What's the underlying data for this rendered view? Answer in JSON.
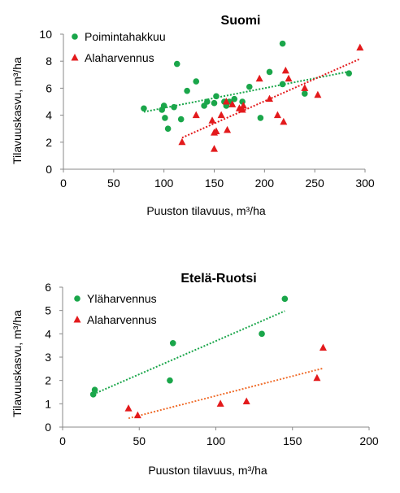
{
  "chart_data": [
    {
      "type": "scatter",
      "title": "Suomi",
      "xlabel": "Puuston tilavuus, m³/ha",
      "ylabel": "Tilavuuskasvu, m³/ha",
      "xlim": [
        0,
        300
      ],
      "ylim": [
        0,
        10
      ],
      "x_ticks": [
        0,
        50,
        100,
        150,
        200,
        250,
        300
      ],
      "y_ticks": [
        0,
        2,
        4,
        6,
        8,
        10
      ],
      "grid": false,
      "legend_position": "top-left",
      "series": [
        {
          "name": "Poimintahakkuu",
          "marker": "circle",
          "color": "#1aa64a",
          "trendline": "linear",
          "points": [
            [
              80,
              4.5
            ],
            [
              98,
              4.4
            ],
            [
              100,
              4.7
            ],
            [
              101,
              3.8
            ],
            [
              104,
              3.0
            ],
            [
              110,
              4.6
            ],
            [
              113,
              7.8
            ],
            [
              117,
              3.7
            ],
            [
              123,
              5.8
            ],
            [
              132,
              6.5
            ],
            [
              140,
              4.7
            ],
            [
              143,
              5.0
            ],
            [
              150,
              4.9
            ],
            [
              152,
              5.4
            ],
            [
              160,
              5.0
            ],
            [
              162,
              4.7
            ],
            [
              165,
              5.0
            ],
            [
              170,
              5.2
            ],
            [
              178,
              5.0
            ],
            [
              185,
              6.1
            ],
            [
              196,
              3.8
            ],
            [
              205,
              7.2
            ],
            [
              218,
              9.3
            ],
            [
              218,
              6.3
            ],
            [
              240,
              5.6
            ],
            [
              284,
              7.1
            ]
          ]
        },
        {
          "name": "Alaharvennus",
          "marker": "triangle",
          "color": "#e31a1c",
          "trendline": "linear",
          "points": [
            [
              118,
              2.0
            ],
            [
              132,
              4.0
            ],
            [
              148,
              3.6
            ],
            [
              150,
              1.5
            ],
            [
              150,
              2.7
            ],
            [
              152,
              2.8
            ],
            [
              157,
              4.0
            ],
            [
              162,
              5.0
            ],
            [
              163,
              2.9
            ],
            [
              168,
              4.8
            ],
            [
              175,
              4.5
            ],
            [
              178,
              4.4
            ],
            [
              179,
              4.7
            ],
            [
              195,
              6.7
            ],
            [
              205,
              5.2
            ],
            [
              213,
              4.0
            ],
            [
              219,
              3.5
            ],
            [
              221,
              7.3
            ],
            [
              224,
              6.7
            ],
            [
              240,
              6.0
            ],
            [
              253,
              5.5
            ],
            [
              295,
              9.0
            ]
          ]
        }
      ]
    },
    {
      "type": "scatter",
      "title": "Etelä-Ruotsi",
      "xlabel": "Puuston tilavuus, m³/ha",
      "ylabel": "Tilavuuskasvu, m³/ha",
      "xlim": [
        0,
        200
      ],
      "ylim": [
        0,
        6
      ],
      "x_ticks": [
        0,
        50,
        100,
        150,
        200
      ],
      "y_ticks": [
        0,
        1,
        2,
        3,
        4,
        5,
        6
      ],
      "grid": false,
      "legend_position": "top-left",
      "series": [
        {
          "name": "Yläharvennus",
          "marker": "circle",
          "color": "#1aa64a",
          "trendline": "linear",
          "points": [
            [
              20,
              1.4
            ],
            [
              21,
              1.6
            ],
            [
              70,
              2.0
            ],
            [
              72,
              3.6
            ],
            [
              130,
              4.0
            ],
            [
              145,
              5.5
            ]
          ]
        },
        {
          "name": "Alaharvennus",
          "marker": "triangle",
          "color": "#e31a1c",
          "trendline": "linear",
          "points": [
            [
              43,
              0.8
            ],
            [
              49,
              0.5
            ],
            [
              103,
              1.0
            ],
            [
              120,
              1.1
            ],
            [
              166,
              2.1
            ],
            [
              170,
              3.4
            ]
          ]
        }
      ]
    }
  ]
}
